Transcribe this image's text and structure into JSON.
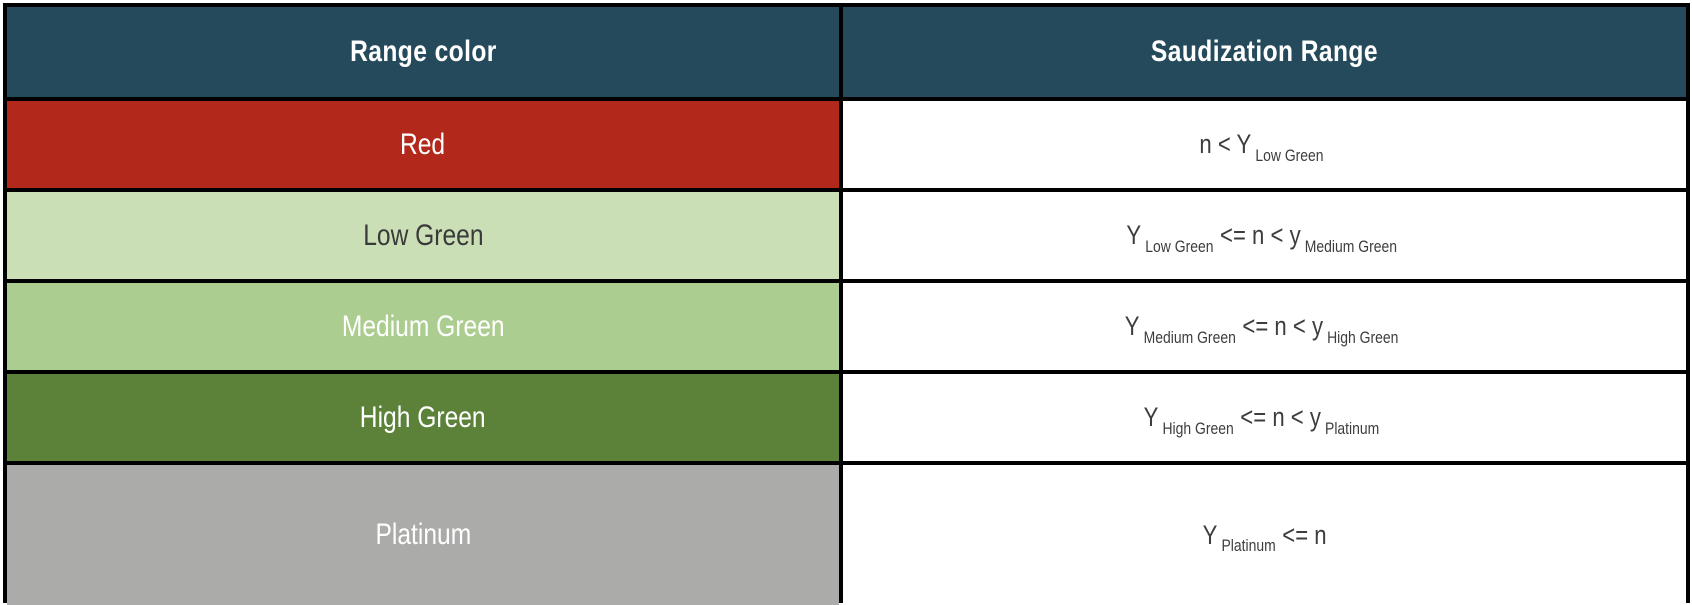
{
  "table": {
    "border_color": "#000000",
    "formula_text_color": "#3d3d3d",
    "header": {
      "bg": "#254a5c",
      "text_color": "#ffffff",
      "columns": [
        "Range color",
        "Saudization Range"
      ]
    },
    "rows": [
      {
        "color_name": "Red",
        "color_hex": "#b2291b",
        "label_text_color": "#ffffff",
        "range_segments": [
          {
            "text": "n < Y",
            "sub": false
          },
          {
            "text": "Low Green",
            "sub": true
          }
        ]
      },
      {
        "color_name": "Low Green",
        "color_hex": "#cbdfb6",
        "label_text_color": "#3a3a3a",
        "range_segments": [
          {
            "text": "Y",
            "sub": false
          },
          {
            "text": "Low Green",
            "sub": true
          },
          {
            "text": "<= n < y",
            "sub": false
          },
          {
            "text": "Medium Green",
            "sub": true
          }
        ]
      },
      {
        "color_name": "Medium Green",
        "color_hex": "#abce90",
        "label_text_color": "#ffffff",
        "range_segments": [
          {
            "text": "Y",
            "sub": false
          },
          {
            "text": "Medium Green",
            "sub": true
          },
          {
            "text": "<= n < y",
            "sub": false
          },
          {
            "text": "High Green",
            "sub": true
          }
        ]
      },
      {
        "color_name": "High Green",
        "color_hex": "#5c8239",
        "label_text_color": "#ffffff",
        "range_segments": [
          {
            "text": "Y",
            "sub": false
          },
          {
            "text": "High Green",
            "sub": true
          },
          {
            "text": "<= n < y",
            "sub": false
          },
          {
            "text": "Platinum",
            "sub": true
          }
        ]
      },
      {
        "color_name": "Platinum",
        "color_hex": "#ababa9",
        "label_text_color": "#ffffff",
        "range_segments": [
          {
            "text": "Y",
            "sub": false
          },
          {
            "text": "Platinum",
            "sub": true
          },
          {
            "text": "<= n",
            "sub": false
          }
        ]
      }
    ]
  }
}
